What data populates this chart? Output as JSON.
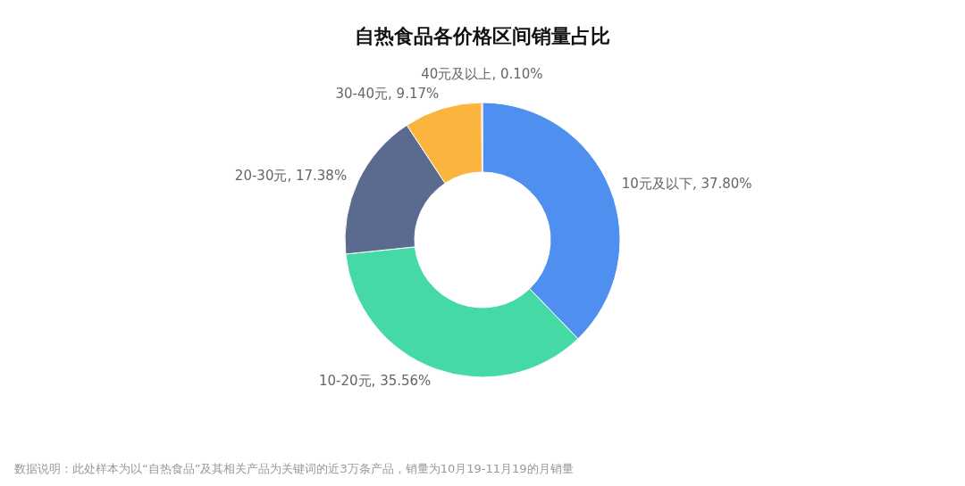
{
  "chart_data": {
    "type": "donut",
    "title": "自热食品各价格区间销量占比",
    "categories": [
      "10元及以下",
      "10-20元",
      "20-30元",
      "30-40元",
      "40元及以上"
    ],
    "values": [
      37.8,
      35.56,
      17.38,
      9.17,
      0.1
    ],
    "value_labels": [
      "37.80%",
      "35.56%",
      "17.38%",
      "9.17%",
      "0.10%"
    ],
    "colors": [
      "#4e8ff0",
      "#45d9a5",
      "#5a6b8f",
      "#fbb53f",
      "#ee6666"
    ],
    "annotations": [
      "数据说明：此处样本为以“自热食品”及其相关产品为关键词的近3万条产品，销量为10月19-11月19的月销量"
    ]
  }
}
